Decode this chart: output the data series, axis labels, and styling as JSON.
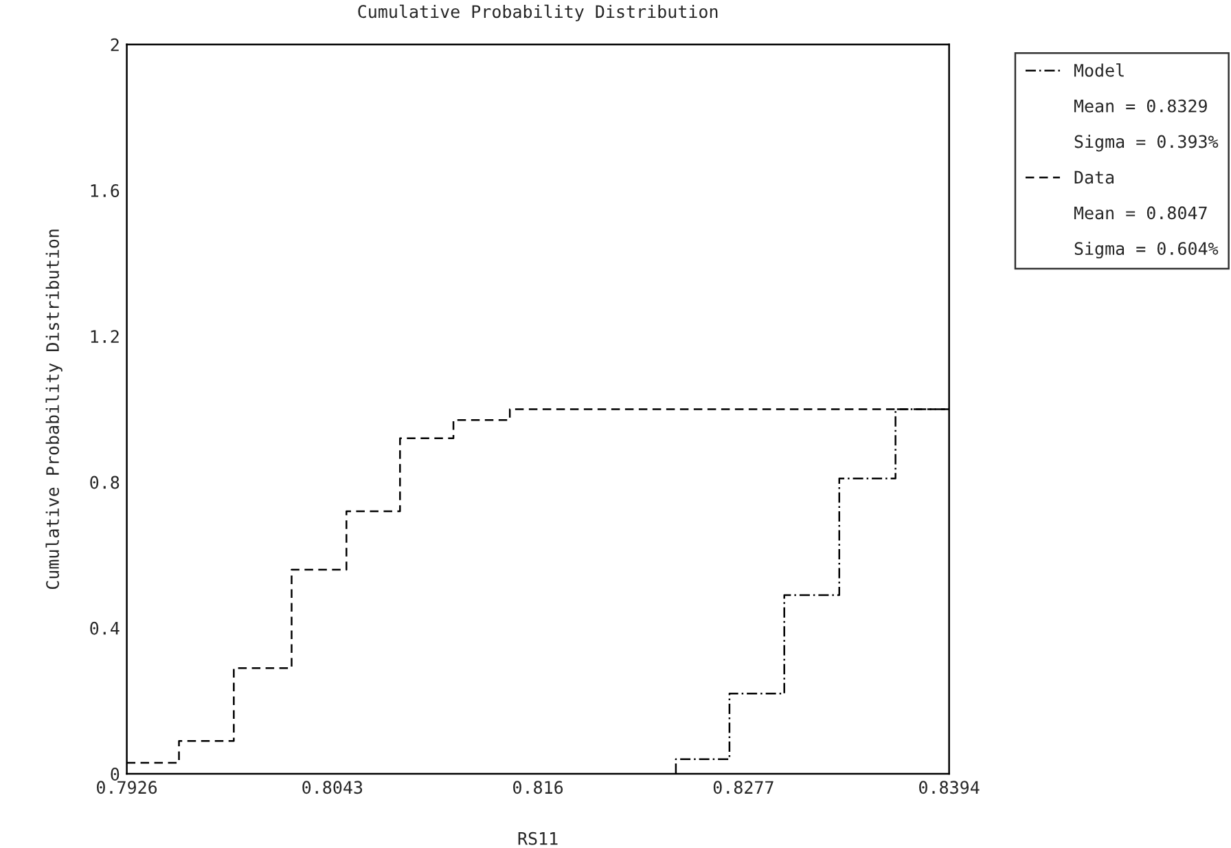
{
  "chart_data": {
    "type": "step",
    "title": "Cumulative Probability Distribution",
    "xlabel": "RS11",
    "ylabel": "Cumulative Probability Distribution",
    "xlim": [
      0.7926,
      0.8394
    ],
    "xticks": [
      0.7926,
      0.8043,
      0.816,
      0.8277,
      0.8394
    ],
    "ylim": [
      0,
      2
    ],
    "yticks": [
      0,
      0.4,
      0.8,
      1.2,
      1.6,
      2
    ],
    "grid": false,
    "legend": "top right",
    "series": [
      {
        "name": "Model",
        "color": "#000000",
        "line_style": "dashdot",
        "x": [
          0.82385,
          0.82385,
          0.8269,
          0.83002,
          0.83315,
          0.83635,
          0.8394
        ],
        "values": [
          0,
          0.04,
          0.22,
          0.49,
          0.81,
          1.0,
          1.0
        ]
      },
      {
        "name": "Data",
        "color": "#000000",
        "line_style": "dashed",
        "x": [
          0.7926,
          0.79557,
          0.79869,
          0.80198,
          0.8051,
          0.80815,
          0.81119,
          0.8144,
          0.8394
        ],
        "values": [
          0.03,
          0.09,
          0.29,
          0.56,
          0.72,
          0.92,
          0.97,
          1.0,
          1.0
        ]
      }
    ],
    "annotations": [
      "Mean = 0.8329",
      "Sigma = 0.393%",
      "Mean = 0.8047",
      "Sigma = 0.604%"
    ]
  }
}
